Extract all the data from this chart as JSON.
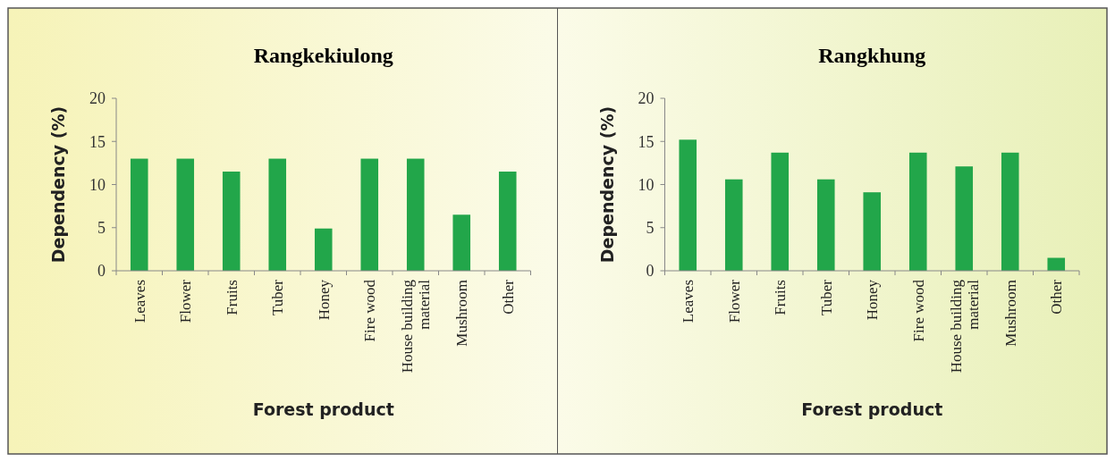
{
  "chart_data": [
    {
      "type": "bar",
      "title": "Rangkekiulong",
      "xlabel": "Forest product",
      "ylabel": "Dependency (%)",
      "categories": [
        "Leaves",
        "Flower",
        "Fruits",
        "Tuber",
        "Honey",
        "Fire wood",
        "House building material",
        "Mushroom",
        "Other"
      ],
      "values": [
        13,
        13,
        11.5,
        13,
        4.9,
        13,
        13,
        6.5,
        11.5
      ],
      "color": "#22a64a",
      "ylim": [
        0,
        20
      ],
      "yticks": [
        0,
        5,
        10,
        15,
        20
      ],
      "grid": false
    },
    {
      "type": "bar",
      "title": "Rangkhung",
      "xlabel": "Forest product",
      "ylabel": "Dependency (%)",
      "categories": [
        "Leaves",
        "Flower",
        "Fruits",
        "Tuber",
        "Honey",
        "Fire wood",
        "House building material",
        "Mushroom",
        "Other"
      ],
      "values": [
        15.2,
        10.6,
        13.7,
        10.6,
        9.1,
        13.7,
        12.1,
        13.7,
        1.5
      ],
      "color": "#22a64a",
      "ylim": [
        0,
        20
      ],
      "yticks": [
        0,
        5,
        10,
        15,
        20
      ],
      "grid": false
    }
  ]
}
